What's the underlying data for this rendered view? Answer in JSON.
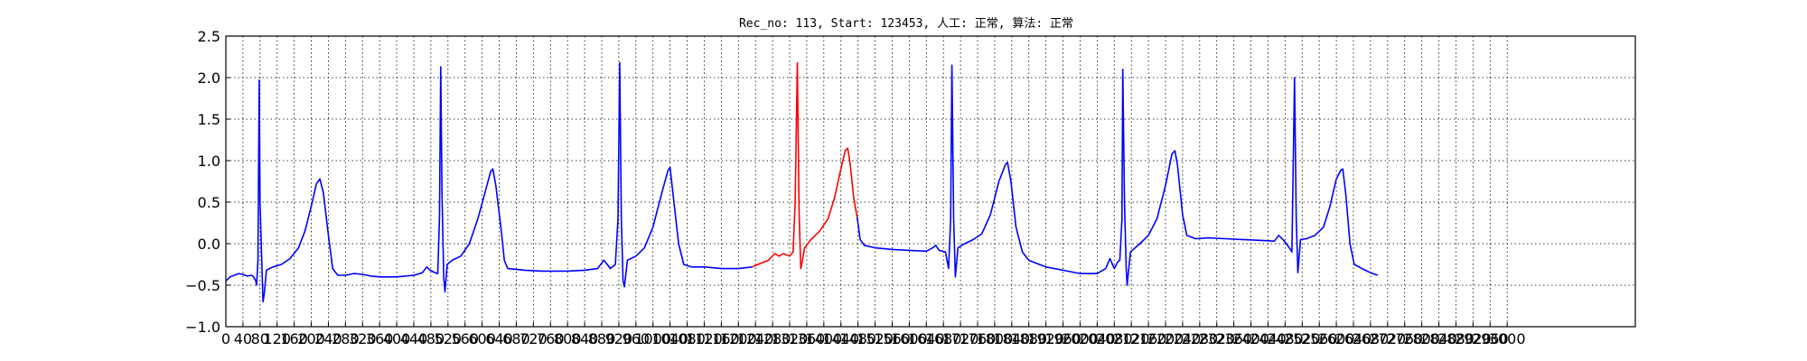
{
  "chart_data": {
    "type": "line",
    "title": "Rec_no: 113, Start: 123453, 人工: 正常, 算法: 正常",
    "xlabel": "",
    "ylabel": "",
    "xlim": [
      0,
      3300
    ],
    "ylim": [
      -1.0,
      2.5
    ],
    "x_ticks": [
      0,
      40,
      80,
      120,
      160,
      200,
      240,
      280,
      320,
      360,
      400,
      440,
      480,
      520,
      560,
      600,
      640,
      680,
      720,
      760,
      800,
      840,
      880,
      920,
      960,
      1000,
      1040,
      1080,
      1120,
      1160,
      1200,
      1240,
      1280,
      1320,
      1360,
      1400,
      1440,
      1480,
      1520,
      1560,
      1600,
      1640,
      1680,
      1720,
      1760,
      1800,
      1840,
      1880,
      1920,
      1960,
      2000,
      2040,
      2080,
      2120,
      2160,
      2200,
      2240,
      2280,
      2320,
      2360,
      2400,
      2440,
      2480,
      2520,
      2560,
      2600,
      2640,
      2680,
      2720,
      2760,
      2800,
      2840,
      2880,
      2920,
      2960,
      3000
    ],
    "x_tick_labels": [
      "0",
      "40",
      "80",
      "120",
      "160",
      "200",
      "240",
      "280",
      "320",
      "360",
      "400",
      "440",
      "480",
      "520",
      "560",
      "600",
      "640",
      "680",
      "720",
      "760",
      "800",
      "840",
      "880",
      "920",
      "960",
      "1000",
      "1040",
      "1080",
      "1120",
      "1160",
      "1200",
      "1240",
      "1280",
      "1320",
      "1360",
      "1400",
      "1440",
      "1480",
      "1520",
      "1560",
      "1600",
      "1640",
      "1680",
      "1720",
      "1760",
      "1800",
      "1840",
      "1880",
      "1920",
      "1960",
      "2000",
      "2040",
      "2080",
      "2120",
      "2160",
      "2200",
      "2240",
      "2280",
      "2320",
      "2360",
      "2400",
      "2440",
      "2480",
      "2520",
      "2560",
      "2600",
      "2640",
      "2680",
      "2720",
      "2760",
      "2800",
      "2840",
      "2880",
      "2920",
      "2960",
      "3000"
    ],
    "y_ticks": [
      -1.0,
      -0.5,
      0.0,
      0.5,
      1.0,
      1.5,
      2.0,
      2.5
    ],
    "y_tick_labels": [
      "−1.0",
      "−0.5",
      "0.0",
      "0.5",
      "1.0",
      "1.5",
      "2.0",
      "2.5"
    ],
    "grid": true,
    "grid_style": "dotted",
    "series": [
      {
        "color": "#0000ff",
        "points": [
          [
            0,
            -0.45
          ],
          [
            10,
            -0.4
          ],
          [
            20,
            -0.38
          ],
          [
            30,
            -0.36
          ],
          [
            40,
            -0.37
          ],
          [
            50,
            -0.39
          ],
          [
            60,
            -0.38
          ],
          [
            65,
            -0.4
          ],
          [
            70,
            -0.45
          ],
          [
            72,
            -0.5
          ],
          [
            75,
            -0.2
          ],
          [
            78,
            1.97
          ],
          [
            80,
            0.5
          ],
          [
            84,
            -0.2
          ],
          [
            87,
            -0.7
          ],
          [
            90,
            -0.6
          ],
          [
            95,
            -0.32
          ],
          [
            110,
            -0.28
          ],
          [
            130,
            -0.25
          ],
          [
            150,
            -0.18
          ],
          [
            170,
            -0.05
          ],
          [
            185,
            0.15
          ],
          [
            200,
            0.45
          ],
          [
            212,
            0.72
          ],
          [
            220,
            0.78
          ],
          [
            228,
            0.62
          ],
          [
            240,
            0.1
          ],
          [
            250,
            -0.3
          ],
          [
            262,
            -0.38
          ],
          [
            280,
            -0.38
          ],
          [
            300,
            -0.36
          ],
          [
            320,
            -0.37
          ],
          [
            340,
            -0.39
          ],
          [
            360,
            -0.4
          ],
          [
            400,
            -0.4
          ],
          [
            440,
            -0.38
          ],
          [
            460,
            -0.35
          ],
          [
            470,
            -0.28
          ],
          [
            478,
            -0.32
          ],
          [
            490,
            -0.35
          ],
          [
            496,
            -0.36
          ],
          [
            500,
            0.3
          ],
          [
            503,
            2.13
          ],
          [
            506,
            0.6
          ],
          [
            510,
            -0.4
          ],
          [
            513,
            -0.58
          ],
          [
            518,
            -0.25
          ],
          [
            530,
            -0.2
          ],
          [
            550,
            -0.15
          ],
          [
            570,
            0.0
          ],
          [
            590,
            0.3
          ],
          [
            610,
            0.68
          ],
          [
            620,
            0.87
          ],
          [
            625,
            0.9
          ],
          [
            632,
            0.7
          ],
          [
            645,
            0.15
          ],
          [
            652,
            -0.2
          ],
          [
            660,
            -0.3
          ],
          [
            700,
            -0.32
          ],
          [
            740,
            -0.33
          ],
          [
            800,
            -0.33
          ],
          [
            840,
            -0.32
          ],
          [
            870,
            -0.3
          ],
          [
            885,
            -0.2
          ],
          [
            893,
            -0.25
          ],
          [
            900,
            -0.3
          ],
          [
            912,
            -0.25
          ],
          [
            918,
            0.3
          ],
          [
            922,
            2.18
          ],
          [
            926,
            0.3
          ],
          [
            930,
            -0.45
          ],
          [
            933,
            -0.52
          ],
          [
            940,
            -0.2
          ],
          [
            960,
            -0.15
          ],
          [
            980,
            -0.05
          ],
          [
            1000,
            0.2
          ],
          [
            1020,
            0.6
          ],
          [
            1035,
            0.88
          ],
          [
            1040,
            0.92
          ],
          [
            1048,
            0.55
          ],
          [
            1060,
            0.0
          ],
          [
            1072,
            -0.25
          ],
          [
            1090,
            -0.28
          ],
          [
            1120,
            -0.28
          ],
          [
            1160,
            -0.3
          ],
          [
            1200,
            -0.3
          ],
          [
            1232,
            -0.28
          ]
        ]
      },
      {
        "color": "#ff0000",
        "points": [
          [
            1232,
            -0.28
          ],
          [
            1250,
            -0.24
          ],
          [
            1270,
            -0.2
          ],
          [
            1285,
            -0.12
          ],
          [
            1295,
            -0.15
          ],
          [
            1305,
            -0.12
          ],
          [
            1320,
            -0.15
          ],
          [
            1328,
            -0.1
          ],
          [
            1333,
            0.5
          ],
          [
            1338,
            2.18
          ],
          [
            1342,
            0.4
          ],
          [
            1346,
            -0.3
          ],
          [
            1350,
            -0.2
          ],
          [
            1355,
            -0.05
          ],
          [
            1370,
            0.05
          ],
          [
            1390,
            0.15
          ],
          [
            1410,
            0.3
          ],
          [
            1425,
            0.55
          ],
          [
            1440,
            0.9
          ],
          [
            1450,
            1.12
          ],
          [
            1456,
            1.15
          ],
          [
            1462,
            0.95
          ],
          [
            1470,
            0.55
          ],
          [
            1478,
            0.32
          ]
        ]
      },
      {
        "color": "#0000ff",
        "points": [
          [
            1478,
            0.32
          ],
          [
            1485,
            0.05
          ],
          [
            1495,
            -0.02
          ],
          [
            1520,
            -0.05
          ],
          [
            1560,
            -0.07
          ],
          [
            1600,
            -0.08
          ],
          [
            1640,
            -0.09
          ],
          [
            1655,
            -0.05
          ],
          [
            1662,
            -0.02
          ],
          [
            1670,
            -0.08
          ],
          [
            1685,
            -0.1
          ],
          [
            1692,
            -0.3
          ],
          [
            1697,
            0.3
          ],
          [
            1700,
            2.15
          ],
          [
            1704,
            0.3
          ],
          [
            1708,
            -0.4
          ],
          [
            1714,
            -0.05
          ],
          [
            1730,
            0.0
          ],
          [
            1750,
            0.05
          ],
          [
            1770,
            0.12
          ],
          [
            1790,
            0.35
          ],
          [
            1810,
            0.75
          ],
          [
            1825,
            0.95
          ],
          [
            1830,
            0.98
          ],
          [
            1838,
            0.75
          ],
          [
            1850,
            0.2
          ],
          [
            1865,
            -0.1
          ],
          [
            1880,
            -0.2
          ],
          [
            1920,
            -0.28
          ],
          [
            1960,
            -0.32
          ],
          [
            2000,
            -0.36
          ],
          [
            2040,
            -0.36
          ],
          [
            2060,
            -0.3
          ],
          [
            2070,
            -0.18
          ],
          [
            2080,
            -0.3
          ],
          [
            2088,
            -0.22
          ],
          [
            2093,
            -0.2
          ],
          [
            2098,
            0.3
          ],
          [
            2100,
            2.1
          ],
          [
            2104,
            0.5
          ],
          [
            2108,
            -0.3
          ],
          [
            2110,
            -0.5
          ],
          [
            2118,
            -0.1
          ],
          [
            2140,
            0.0
          ],
          [
            2160,
            0.1
          ],
          [
            2180,
            0.3
          ],
          [
            2200,
            0.7
          ],
          [
            2215,
            1.08
          ],
          [
            2222,
            1.12
          ],
          [
            2228,
            0.95
          ],
          [
            2240,
            0.35
          ],
          [
            2250,
            0.1
          ],
          [
            2270,
            0.06
          ],
          [
            2300,
            0.07
          ],
          [
            2340,
            0.06
          ],
          [
            2380,
            0.05
          ],
          [
            2420,
            0.04
          ],
          [
            2455,
            0.03
          ],
          [
            2465,
            0.1
          ],
          [
            2475,
            0.05
          ],
          [
            2490,
            -0.05
          ],
          [
            2496,
            -0.1
          ],
          [
            2502,
            2.0
          ],
          [
            2506,
            0.3
          ],
          [
            2510,
            -0.35
          ],
          [
            2516,
            0.05
          ],
          [
            2530,
            0.06
          ],
          [
            2550,
            0.1
          ],
          [
            2570,
            0.2
          ],
          [
            2585,
            0.45
          ],
          [
            2600,
            0.78
          ],
          [
            2610,
            0.88
          ],
          [
            2615,
            0.9
          ],
          [
            2622,
            0.6
          ],
          [
            2632,
            0.0
          ],
          [
            2642,
            -0.25
          ],
          [
            2660,
            -0.3
          ],
          [
            2680,
            -0.35
          ],
          [
            2697,
            -0.38
          ]
        ]
      }
    ]
  }
}
